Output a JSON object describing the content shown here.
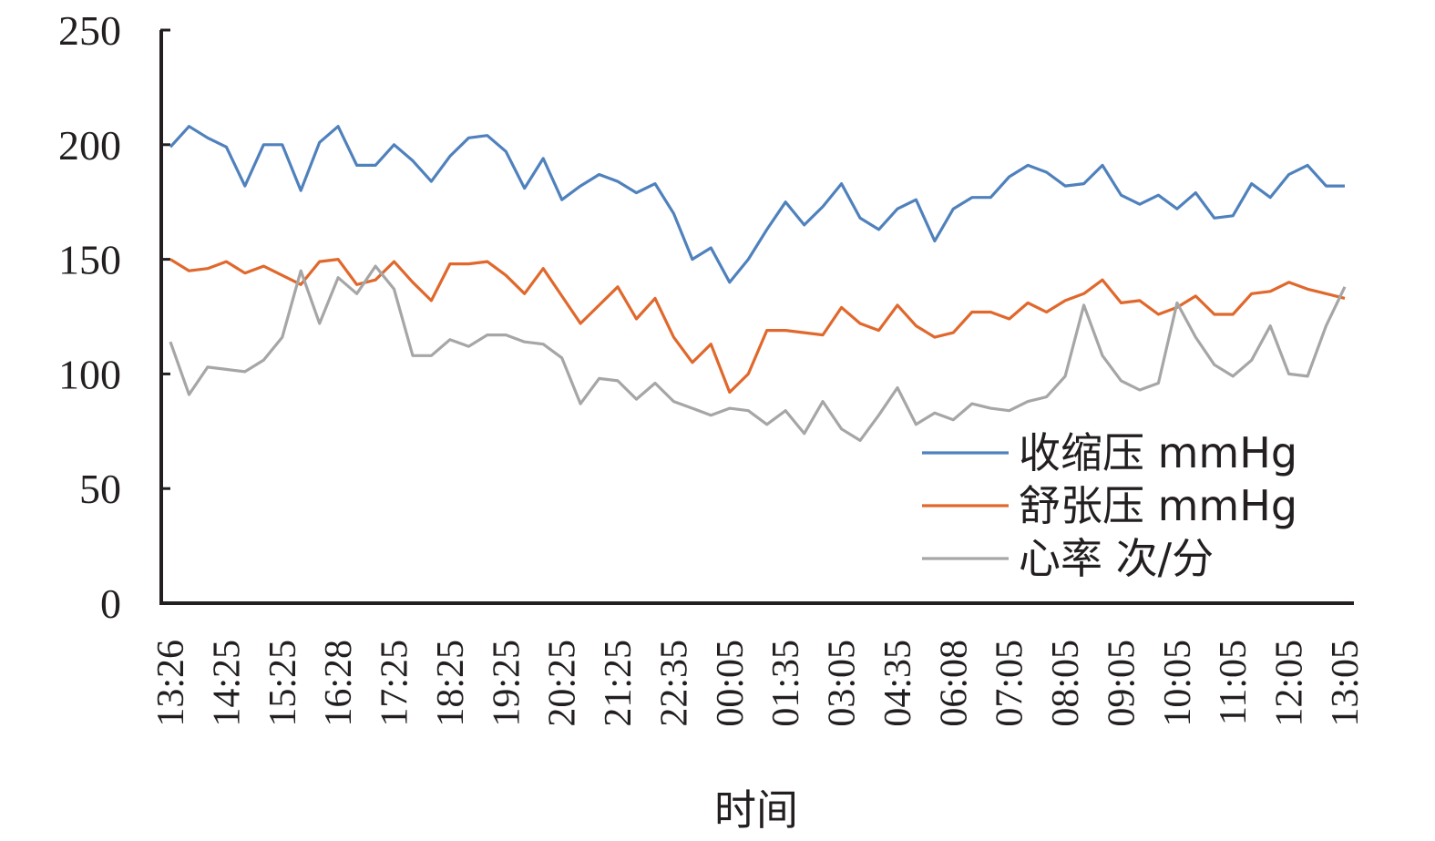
{
  "chart_data": {
    "type": "line",
    "title": "",
    "xlabel": "时间",
    "ylabel": "",
    "ylim": [
      0,
      250
    ],
    "yticks": [
      0,
      50,
      100,
      150,
      200,
      250
    ],
    "grid": false,
    "legend_position": "bottom-right",
    "x_tick_labels": [
      "13:26",
      "14:25",
      "15:25",
      "16:28",
      "17:25",
      "18:25",
      "19:25",
      "20:25",
      "21:25",
      "22:35",
      "00:05",
      "01:35",
      "03:05",
      "04:35",
      "06:08",
      "07:05",
      "08:05",
      "09:05",
      "10:05",
      "11:05",
      "12:05",
      "13:05"
    ],
    "series": [
      {
        "name": "收缩压 mmHg",
        "color": "#4f81bd",
        "values": [
          199,
          208,
          203,
          199,
          182,
          200,
          200,
          180,
          201,
          208,
          191,
          191,
          200,
          193,
          184,
          195,
          203,
          204,
          197,
          181,
          194,
          176,
          182,
          187,
          184,
          179,
          183,
          170,
          150,
          155,
          140,
          150,
          163,
          175,
          165,
          173,
          183,
          168,
          163,
          172,
          176,
          158,
          172,
          177,
          177,
          186,
          191,
          188,
          182,
          183,
          191,
          178,
          174,
          178,
          172,
          179,
          168,
          169,
          183,
          177,
          187,
          191,
          182,
          182
        ]
      },
      {
        "name": "舒张压 mmHg",
        "color": "#e0682c",
        "values": [
          150,
          145,
          146,
          149,
          144,
          147,
          143,
          139,
          149,
          150,
          139,
          141,
          149,
          140,
          132,
          148,
          148,
          149,
          143,
          135,
          146,
          134,
          122,
          130,
          138,
          124,
          133,
          116,
          105,
          113,
          92,
          100,
          119,
          119,
          118,
          117,
          129,
          122,
          119,
          130,
          121,
          116,
          118,
          127,
          127,
          124,
          131,
          127,
          132,
          135,
          141,
          131,
          132,
          126,
          129,
          134,
          126,
          126,
          135,
          136,
          140,
          137,
          135,
          133
        ]
      },
      {
        "name": "心率 次/分",
        "color": "#a6a6a6",
        "values": [
          114,
          91,
          103,
          102,
          101,
          106,
          116,
          145,
          122,
          142,
          135,
          147,
          137,
          108,
          108,
          115,
          112,
          117,
          117,
          114,
          113,
          107,
          87,
          98,
          97,
          89,
          96,
          88,
          85,
          82,
          85,
          84,
          78,
          84,
          74,
          88,
          76,
          71,
          82,
          94,
          78,
          83,
          80,
          87,
          85,
          84,
          88,
          90,
          99,
          130,
          108,
          97,
          93,
          96,
          131,
          116,
          104,
          99,
          106,
          121,
          100,
          99,
          121,
          138
        ]
      }
    ]
  }
}
